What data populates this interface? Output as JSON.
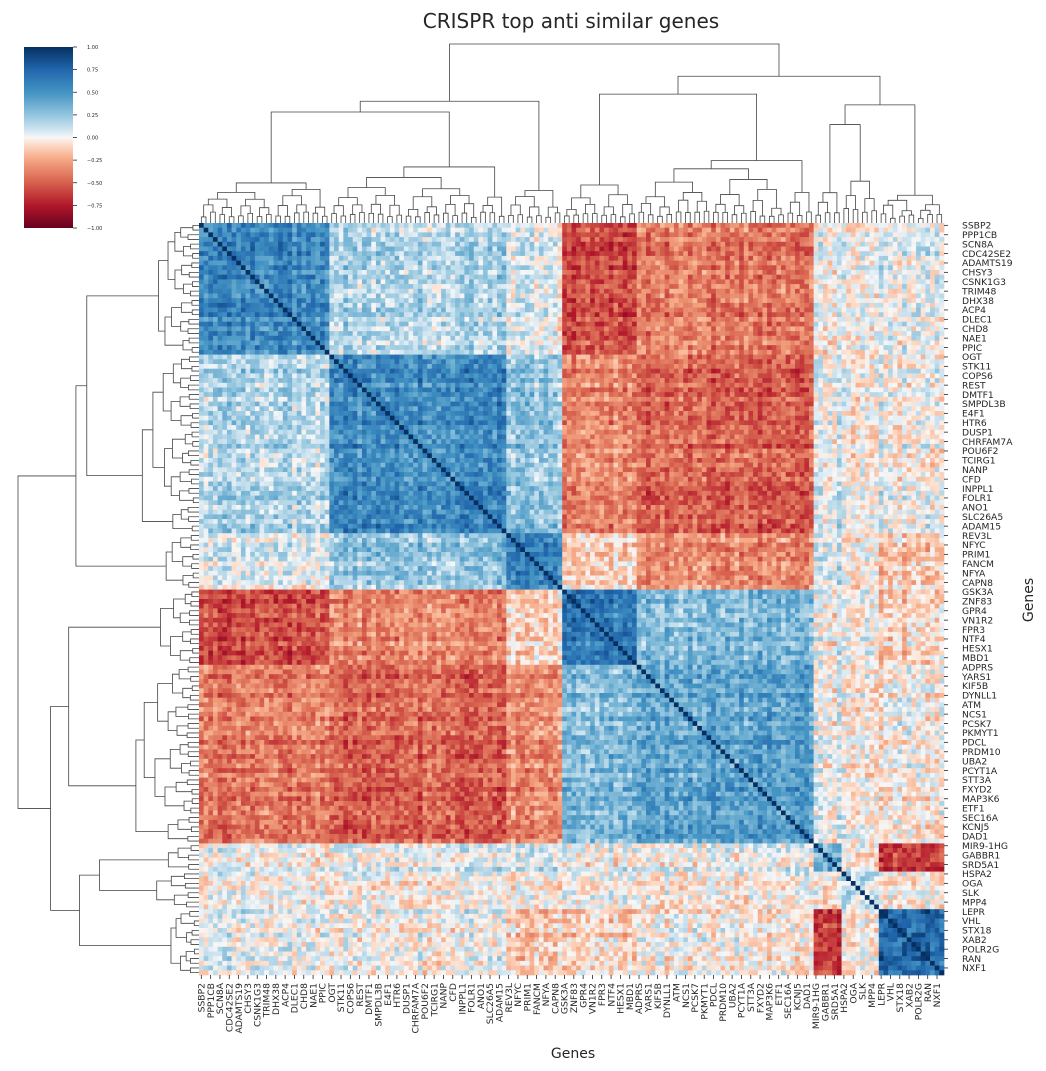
{
  "chart_data": {
    "type": "heatmap",
    "subtype": "clustermap",
    "title": "CRISPR top anti similar genes",
    "xlabel": "Genes",
    "ylabel": "Genes",
    "labels": [
      "SSBP2",
      "PPP1CB",
      "SCN8A",
      "CDC42SE2",
      "ADAMTS19",
      "CHSY3",
      "CSNK1G3",
      "TRIM48",
      "DHX38",
      "ACP4",
      "DLEC1",
      "CHD8",
      "NAE1",
      "PPIC",
      "OGT",
      "STK11",
      "COPS6",
      "REST",
      "DMTF1",
      "SMPDL3B",
      "E4F1",
      "HTR6",
      "DUSP1",
      "CHRFAM7A",
      "POU6F2",
      "TCIRG1",
      "NANP",
      "CFD",
      "INPPL1",
      "FOLR1",
      "ANO1",
      "SLC26A5",
      "ADAM15",
      "REV3L",
      "NFYC",
      "PRIM1",
      "FANCM",
      "NFYA",
      "CAPN8",
      "GSK3A",
      "ZNF83",
      "GPR4",
      "VN1R2",
      "FPR3",
      "NTF4",
      "HESX1",
      "MBD1",
      "ADPRS",
      "YARS1",
      "KIF5B",
      "DYNLL1",
      "ATM",
      "NCS1",
      "PCSK7",
      "PKMYT1",
      "PDCL",
      "PRDM10",
      "UBA2",
      "PCYT1A",
      "STT3A",
      "FXYD2",
      "MAP3K6",
      "ETF1",
      "SEC16A",
      "KCNJ5",
      "DAD1",
      "MIR9-1HG",
      "GABBR1",
      "SRD5A1",
      "HSPA2",
      "OGA",
      "SLK",
      "MPP4",
      "LEPR",
      "VHL",
      "STX18",
      "XAB2",
      "POLR2G",
      "RAN",
      "NXF1"
    ],
    "n_rows": 160,
    "n_cols": 160,
    "clusters": [
      {
        "members": "SSBP2 … PPIC",
        "start": 0,
        "size": 28,
        "within": 0.55
      },
      {
        "members": "OGT … ADAM15",
        "start": 28,
        "size": 38,
        "within": 0.55
      },
      {
        "members": "REV3L … CAPN8",
        "start": 66,
        "size": 12,
        "within": 0.6
      },
      {
        "members": "GSK3A … MBD1",
        "start": 78,
        "size": 16,
        "within": 0.62
      },
      {
        "members": "ADPRS … DAD1",
        "start": 94,
        "size": 38,
        "within": 0.45
      },
      {
        "members": "MIR9-1HG … SRD5A1",
        "start": 132,
        "size": 6,
        "within": 0.4
      },
      {
        "members": "HSPA2 … VHL",
        "start": 138,
        "size": 8,
        "within": 0.15
      },
      {
        "members": "STX18 … NXF1",
        "start": 146,
        "size": 14,
        "within": 0.75
      }
    ],
    "block_correlation": [
      [
        0.55,
        0.15,
        0.05,
        -0.55,
        -0.4,
        0.0,
        0.0,
        0.05
      ],
      [
        0.15,
        0.55,
        0.25,
        -0.35,
        -0.5,
        0.05,
        0.0,
        0.0
      ],
      [
        0.05,
        0.25,
        0.6,
        -0.1,
        -0.35,
        0.1,
        0.0,
        -0.15
      ],
      [
        -0.55,
        -0.35,
        -0.1,
        0.62,
        0.3,
        0.0,
        0.0,
        -0.1
      ],
      [
        -0.4,
        -0.5,
        -0.35,
        0.3,
        0.45,
        0.05,
        0.0,
        -0.05
      ],
      [
        0.0,
        0.05,
        0.1,
        0.0,
        0.05,
        0.4,
        0.0,
        -0.65
      ],
      [
        0.0,
        0.0,
        0.0,
        0.0,
        0.0,
        0.0,
        0.15,
        0.0
      ],
      [
        0.05,
        0.0,
        -0.15,
        -0.1,
        -0.05,
        -0.65,
        0.0,
        0.75
      ]
    ],
    "diagonal": 1.0,
    "colormap": "RdBu_r",
    "vmin": -1.0,
    "vmax": 1.0,
    "colorbar_ticks": [
      "1.00",
      "0.75",
      "0.50",
      "0.25",
      "0.00",
      "−0.25",
      "−0.50",
      "−0.75",
      "−1.00"
    ],
    "colorbar_tick_values": [
      1.0,
      0.75,
      0.5,
      0.25,
      0.0,
      -0.25,
      -0.5,
      -0.75,
      -1.0
    ],
    "colorbar_placement": "top-left",
    "row_dendrogram": "left",
    "col_dendrogram": "top"
  }
}
